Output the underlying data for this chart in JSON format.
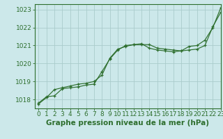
{
  "title": "Graphe pression niveau de la mer (hPa)",
  "bg_color": "#cce8ea",
  "grid_color": "#aacccc",
  "line_color": "#2d6e2d",
  "xlim": [
    -0.5,
    23
  ],
  "ylim": [
    1017.5,
    1023.3
  ],
  "yticks": [
    1018,
    1019,
    1020,
    1021,
    1022,
    1023
  ],
  "xticks": [
    0,
    1,
    2,
    3,
    4,
    5,
    6,
    7,
    8,
    9,
    10,
    11,
    12,
    13,
    14,
    15,
    16,
    17,
    18,
    19,
    20,
    21,
    22,
    23
  ],
  "series1_x": [
    0,
    1,
    2,
    3,
    4,
    5,
    6,
    7,
    8,
    9,
    10,
    11,
    12,
    13,
    14,
    15,
    16,
    17,
    18,
    19,
    20,
    21,
    22,
    23
  ],
  "series1_y": [
    1017.8,
    1018.15,
    1018.2,
    1018.6,
    1018.65,
    1018.7,
    1018.8,
    1018.85,
    1019.55,
    1020.25,
    1020.75,
    1021.0,
    1021.05,
    1021.1,
    1020.85,
    1020.75,
    1020.7,
    1020.65,
    1020.7,
    1020.95,
    1021.0,
    1021.3,
    1022.0,
    1023.1
  ],
  "series2_x": [
    0,
    1,
    2,
    3,
    4,
    5,
    6,
    7,
    8,
    9,
    10,
    11,
    12,
    13,
    14,
    15,
    16,
    17,
    18,
    19,
    20,
    21,
    22,
    23
  ],
  "series2_y": [
    1017.75,
    1018.1,
    1018.55,
    1018.65,
    1018.75,
    1018.85,
    1018.9,
    1019.0,
    1019.35,
    1020.3,
    1020.8,
    1020.95,
    1021.05,
    1021.05,
    1021.05,
    1020.85,
    1020.8,
    1020.75,
    1020.7,
    1020.75,
    1020.8,
    1021.0,
    1022.05,
    1022.85
  ],
  "title_fontsize": 7.5,
  "tick_fontsize": 6.5,
  "tick_color": "#2d6e2d",
  "axis_color": "#2d6e2d",
  "figwidth": 3.2,
  "figheight": 2.0,
  "dpi": 100
}
